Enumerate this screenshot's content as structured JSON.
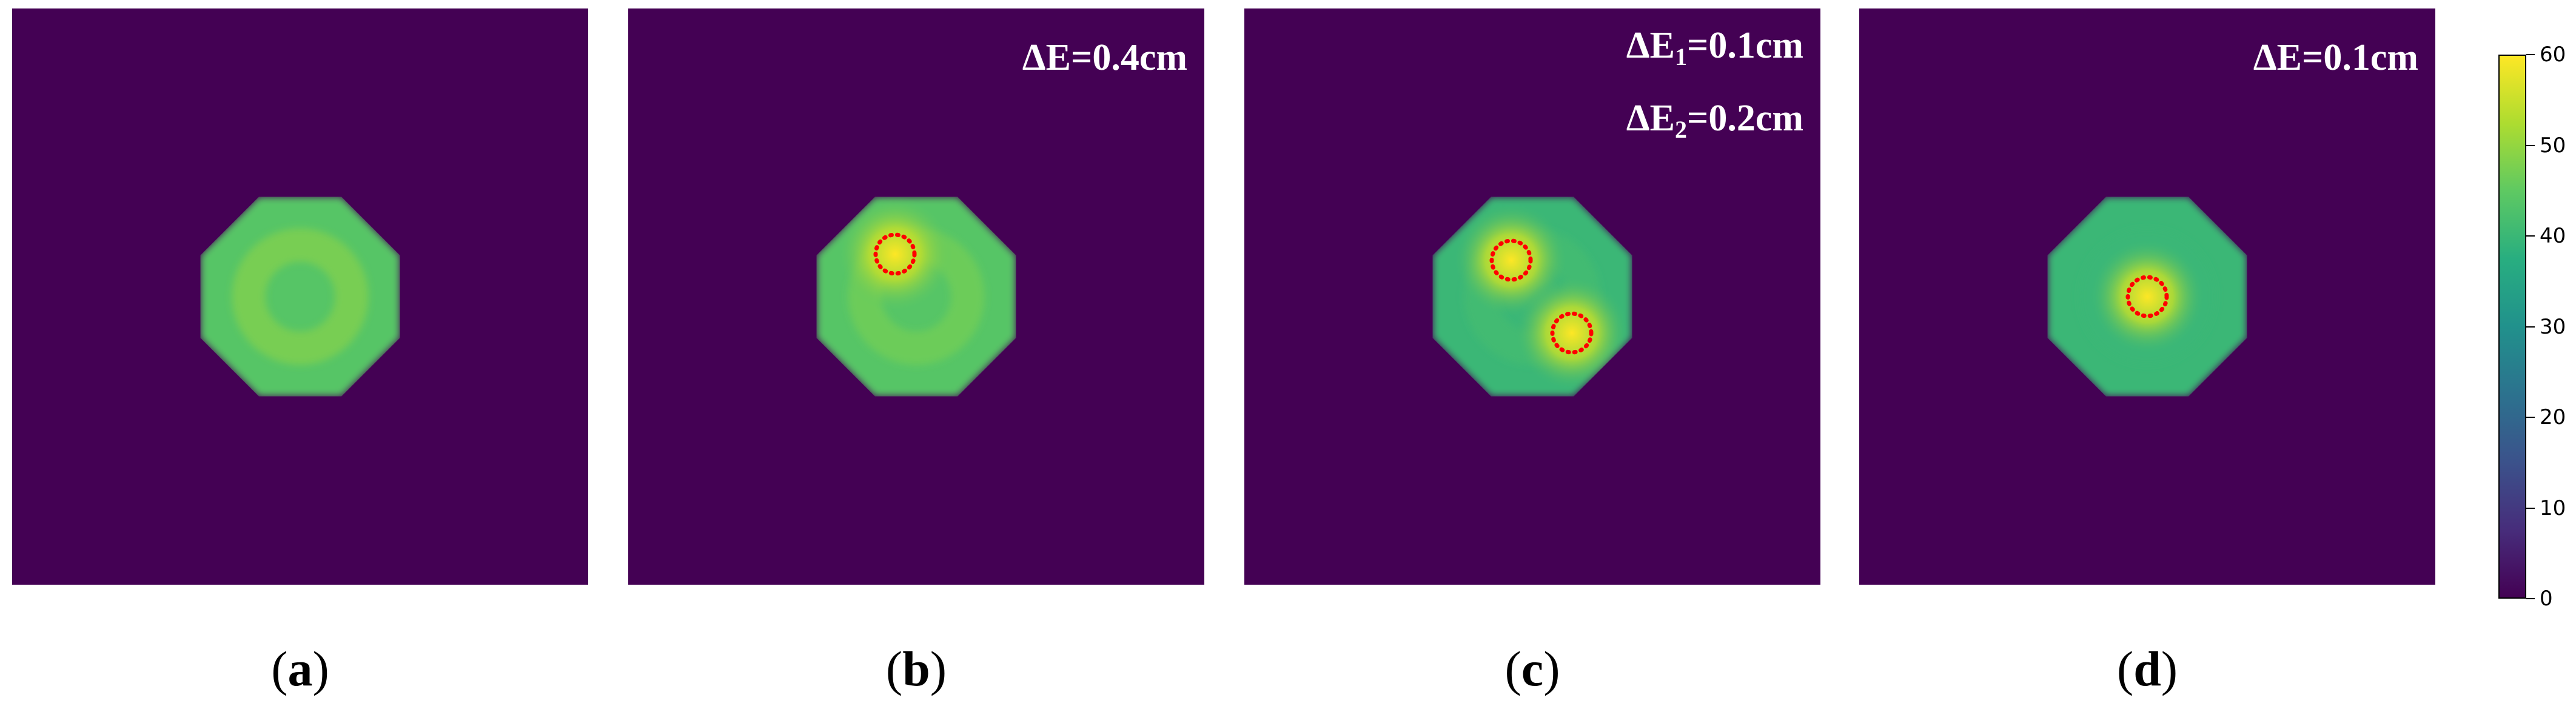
{
  "colormap": "viridis",
  "background_color": "#440154",
  "region_boundary_color": "#ff0000",
  "panels": [
    {
      "caption_letter": "a",
      "annotations": [],
      "field": {
        "base": 44,
        "ring_level": 50,
        "bumps": []
      },
      "marked_regions": []
    },
    {
      "caption_letter": "b",
      "annotations": [
        {
          "prefix": "ΔE",
          "sub": "",
          "value": "=0.4cm"
        }
      ],
      "field": {
        "base": 44,
        "ring_level": 48,
        "bumps": [
          {
            "peak": 60
          }
        ]
      },
      "marked_regions": [
        {
          "peak_value": 60
        }
      ]
    },
    {
      "caption_letter": "c",
      "annotations": [
        {
          "prefix": "ΔE",
          "sub": "1",
          "value": "=0.1cm"
        },
        {
          "prefix": "ΔE",
          "sub": "2",
          "value": "=0.2cm"
        }
      ],
      "field": {
        "base": 40,
        "ring_level": 42,
        "bumps": [
          {
            "peak": 60
          },
          {
            "peak": 60
          }
        ]
      },
      "marked_regions": [
        {
          "peak_value": 60
        },
        {
          "peak_value": 60
        }
      ]
    },
    {
      "caption_letter": "d",
      "annotations": [
        {
          "prefix": "ΔE",
          "sub": "",
          "value": "=0.1cm"
        }
      ],
      "field": {
        "base": 40,
        "ring_level": 40,
        "bumps": [
          {
            "peak": 60
          }
        ]
      },
      "marked_regions": [
        {
          "peak_value": 60
        }
      ]
    }
  ],
  "chart_data": {
    "type": "heatmap",
    "colorbar": {
      "range": [
        0,
        60
      ],
      "ticks": [
        "0",
        "10",
        "20",
        "30",
        "40",
        "50",
        "60"
      ]
    }
  }
}
